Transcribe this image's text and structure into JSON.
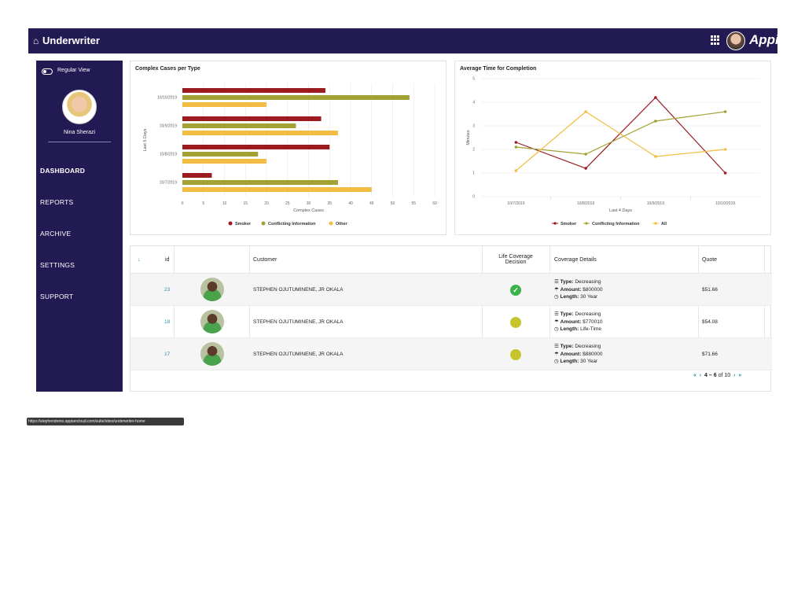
{
  "topbar": {
    "title": "Underwriter",
    "brand": "Appian"
  },
  "sidebar": {
    "toggle_label": "Regular View",
    "user_name": "Nina Sherazi",
    "nav": [
      "DASHBOARD",
      "REPORTS",
      "ARCHIVE",
      "SETTINGS",
      "SUPPORT"
    ]
  },
  "colors": {
    "smoker": "#9b1b21",
    "conflicting": "#a2a234",
    "other": "#f2bd42",
    "nav_bg": "#221a52",
    "link": "#2e8fa3"
  },
  "chart_data": [
    {
      "type": "bar",
      "orientation": "horizontal",
      "title": "Complex Cases per Type",
      "xlabel": "Complex Cases",
      "ylabel": "Last 5 Days",
      "categories": [
        "10/10/2019",
        "10/9/2019",
        "10/8/2019",
        "10/7/2019"
      ],
      "xlim": [
        0,
        60
      ],
      "xticks": [
        "0",
        "5",
        "10",
        "15",
        "20",
        "25",
        "30",
        "35",
        "40",
        "45",
        "50",
        "55",
        "60"
      ],
      "series": [
        {
          "name": "Smoker",
          "values": [
            34,
            33,
            35,
            7
          ]
        },
        {
          "name": "Conflicting Information",
          "values": [
            54,
            27,
            18,
            37
          ]
        },
        {
          "name": "Other",
          "values": [
            20,
            37,
            20,
            45
          ]
        }
      ],
      "legend_position": "bottom"
    },
    {
      "type": "line",
      "title": "Average Time for Completion",
      "xlabel": "Last 4 Days",
      "ylabel": "Minutes",
      "categories": [
        "10/7/2019",
        "10/8/2019",
        "10/9/2019",
        "10/10/2019"
      ],
      "ylim": [
        0,
        5
      ],
      "yticks": [
        "0",
        "1",
        "2",
        "3",
        "4",
        "5"
      ],
      "series": [
        {
          "name": "Smoker",
          "values": [
            2.3,
            1.2,
            4.2,
            1.0
          ]
        },
        {
          "name": "Conflicting Information",
          "values": [
            2.1,
            1.8,
            3.2,
            3.6
          ]
        },
        {
          "name": "All",
          "values": [
            1.1,
            3.6,
            1.7,
            2.0
          ]
        }
      ],
      "legend_position": "bottom"
    }
  ],
  "table": {
    "headers": {
      "sort": "↓",
      "id": "id",
      "customer": "Customer",
      "decision_line1": "Life Coverage",
      "decision_line2": "Decision",
      "coverage": "Coverage Details",
      "quote": "Quote"
    },
    "coverage_labels": {
      "type": "Type:",
      "amount": "Amount:",
      "length": "Length:"
    },
    "rows": [
      {
        "id": "23",
        "customer": "STEPHEN OJUTUMINENE, JR OKALA",
        "decision": "approved",
        "type": "Decreasing",
        "amount": "$800000",
        "length": "30 Year",
        "quote": "$51.66"
      },
      {
        "id": "18",
        "customer": "STEPHEN OJUTUMINENE, JR OKALA",
        "decision": "pending",
        "type": "Decreasing",
        "amount": "$770010",
        "length": "Life-Time",
        "quote": "$54.08"
      },
      {
        "id": "17",
        "customer": "STEPHEN OJUTUMINENE, JR OKALA",
        "decision": "pending",
        "type": "Decreasing",
        "amount": "$880000",
        "length": "30 Year",
        "quote": "$71.66"
      }
    ],
    "pagination": {
      "range": "4 – 6",
      "of": "of 10"
    }
  },
  "status_url": "https://stephendemo.appiancloud.com/suite/sites/underwriter-home"
}
